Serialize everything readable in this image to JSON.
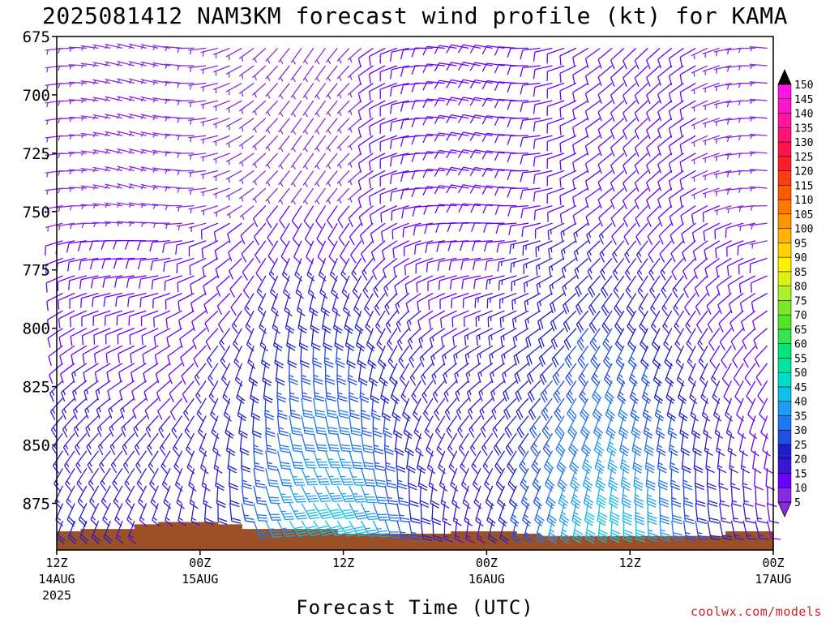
{
  "chart_data": {
    "type": "wind-barb time-height",
    "title": "2025081412 NAM3KM forecast wind profile (kt) for KAMA",
    "xlabel": "Forecast Time (UTC)",
    "ylabel": "",
    "y_ticks": [
      675,
      700,
      725,
      750,
      775,
      800,
      825,
      850,
      875
    ],
    "ylim": [
      675,
      895
    ],
    "x_hour_range": [
      0,
      60
    ],
    "x_ticks": [
      {
        "hour": 0,
        "label": "12Z",
        "date": "14AUG",
        "year": "2025"
      },
      {
        "hour": 12,
        "label": "00Z",
        "date": "15AUG",
        "year": ""
      },
      {
        "hour": 24,
        "label": "12Z",
        "date": "",
        "year": ""
      },
      {
        "hour": 36,
        "label": "00Z",
        "date": "16AUG",
        "year": ""
      },
      {
        "hour": 48,
        "label": "12Z",
        "date": "",
        "year": ""
      },
      {
        "hour": 60,
        "label": "00Z",
        "date": "17AUG",
        "year": ""
      }
    ],
    "colorbar_kt": [
      5,
      10,
      15,
      20,
      25,
      30,
      35,
      40,
      45,
      50,
      55,
      60,
      65,
      70,
      75,
      80,
      85,
      90,
      95,
      100,
      105,
      110,
      115,
      120,
      125,
      130,
      135,
      140,
      145,
      150
    ],
    "colorbar_colors": [
      "#8a2be2",
      "#6a00ff",
      "#3c14d8",
      "#1e1ec8",
      "#1e50e6",
      "#1e78f0",
      "#1e9ef0",
      "#10c0e8",
      "#00dcc8",
      "#00e6a0",
      "#00e678",
      "#32e650",
      "#50e628",
      "#7ce628",
      "#aef028",
      "#dcf014",
      "#fff000",
      "#ffd200",
      "#ffb400",
      "#ff9600",
      "#ff7800",
      "#ff5a00",
      "#ff3c14",
      "#ff1e28",
      "#ff1450",
      "#ff1478",
      "#ff14a0",
      "#ff14c8",
      "#ff14e6",
      "#ff14ff"
    ],
    "terrain_color": "#9c5028",
    "surface_pressure": [
      {
        "start_hour": 0,
        "end_hour": 2,
        "p": 887
      },
      {
        "start_hour": 2,
        "end_hour": 6.5,
        "p": 886
      },
      {
        "start_hour": 6.5,
        "end_hour": 8.5,
        "p": 884
      },
      {
        "start_hour": 8.5,
        "end_hour": 13.5,
        "p": 883
      },
      {
        "start_hour": 13.5,
        "end_hour": 15.5,
        "p": 884
      },
      {
        "start_hour": 15.5,
        "end_hour": 23.5,
        "p": 886
      },
      {
        "start_hour": 23.5,
        "end_hour": 33,
        "p": 888
      },
      {
        "start_hour": 33,
        "end_hour": 38.5,
        "p": 887
      },
      {
        "start_hour": 38.5,
        "end_hour": 40.5,
        "p": 888
      },
      {
        "start_hour": 40.5,
        "end_hour": 56,
        "p": 889
      },
      {
        "start_hour": 56,
        "end_hour": 60,
        "p": 887
      }
    ]
  },
  "credit": "coolwx.com/models"
}
